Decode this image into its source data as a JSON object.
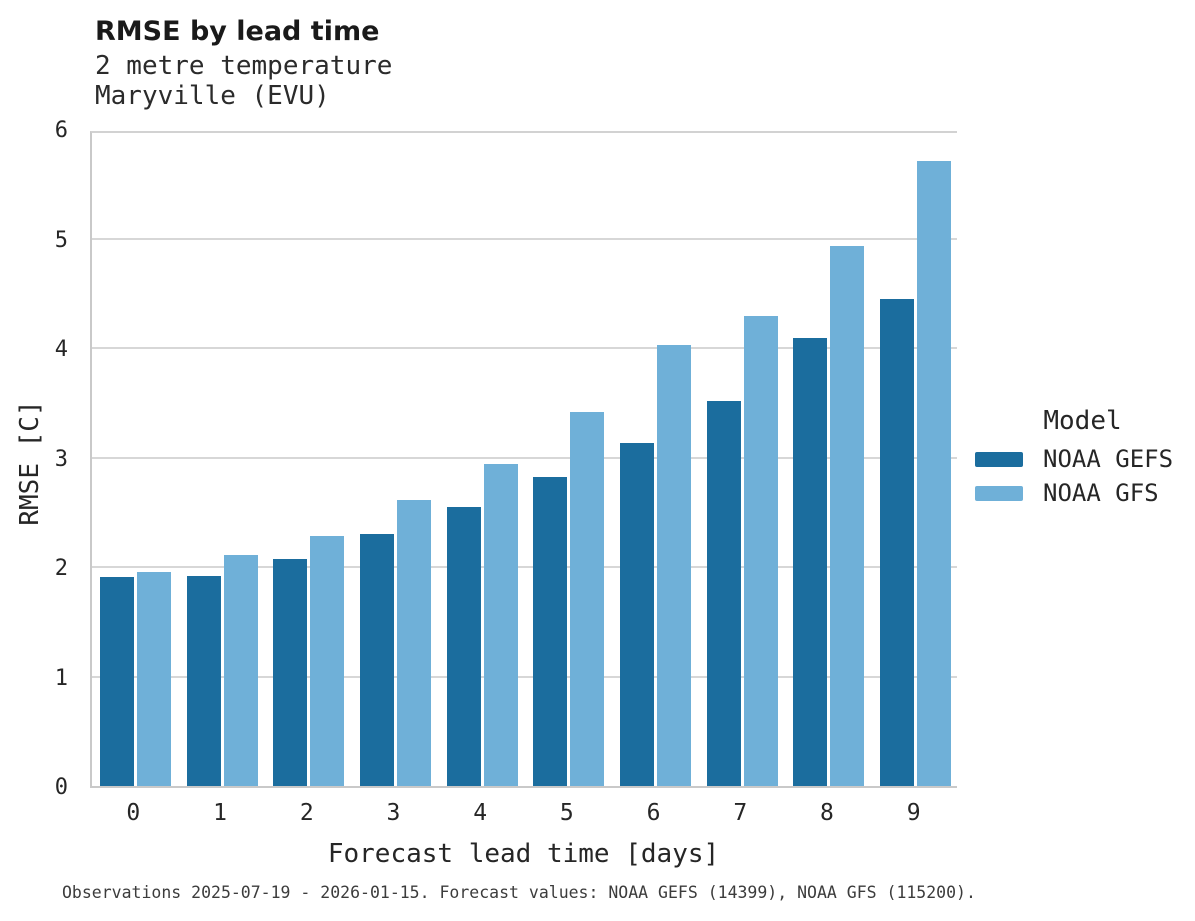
{
  "title": "RMSE by lead time",
  "subtitle_line1": "2 metre temperature",
  "subtitle_line2": "Maryville (EVU)",
  "footer": "Observations 2025-07-19 - 2026-01-15. Forecast values: NOAA GEFS (14399), NOAA GFS (115200).",
  "colors": {
    "gefs_bar": "#1b6d9e",
    "gfs_bar": "#6fb0d8",
    "gridline": "#d7d7d7",
    "spine": "#c9c9c9",
    "text": "#262626"
  },
  "legend": {
    "title": "Model",
    "items": [
      {
        "label": "NOAA GEFS",
        "color": "#1b6d9e"
      },
      {
        "label": "NOAA GFS",
        "color": "#6fb0d8"
      }
    ]
  },
  "chart_data": {
    "type": "bar",
    "title": "RMSE by lead time",
    "subtitle": [
      "2 metre temperature",
      "Maryville (EVU)"
    ],
    "categories": [
      "0",
      "1",
      "2",
      "3",
      "4",
      "5",
      "6",
      "7",
      "8",
      "9"
    ],
    "series": [
      {
        "name": "NOAA GEFS",
        "color": "#1b6d9e",
        "values": [
          1.91,
          1.92,
          2.07,
          2.3,
          2.55,
          2.82,
          3.13,
          3.52,
          4.09,
          4.45
        ]
      },
      {
        "name": "NOAA GFS",
        "color": "#6fb0d8",
        "values": [
          1.95,
          2.11,
          2.28,
          2.61,
          2.94,
          3.42,
          4.03,
          4.29,
          4.93,
          5.71
        ]
      }
    ],
    "xlabel": "Forecast lead time [days]",
    "ylabel": "RMSE [C]",
    "ylim": [
      0,
      6
    ],
    "yticks": [
      0,
      1,
      2,
      3,
      4,
      5,
      6
    ],
    "grid": true,
    "legend_title": "Model",
    "legend_position": "right"
  }
}
